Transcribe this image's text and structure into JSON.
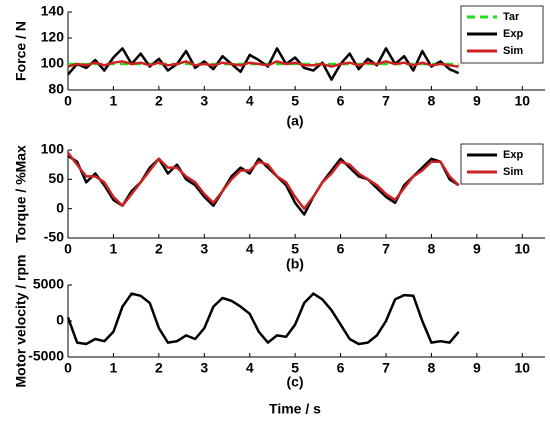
{
  "chart_data": [
    {
      "type": "line",
      "ylabel": "Force / N",
      "caption": "(a)",
      "x": [
        0,
        0.2,
        0.4,
        0.6,
        0.8,
        1,
        1.2,
        1.4,
        1.6,
        1.8,
        2,
        2.2,
        2.4,
        2.6,
        2.8,
        3,
        3.2,
        3.4,
        3.6,
        3.8,
        4,
        4.2,
        4.4,
        4.6,
        4.8,
        5,
        5.2,
        5.4,
        5.6,
        5.8,
        6,
        6.2,
        6.4,
        6.6,
        6.8,
        7,
        7.2,
        7.4,
        7.6,
        7.8,
        8,
        8.2,
        8.4,
        8.6
      ],
      "series": [
        {
          "name": "Tar",
          "color": "#22dd22",
          "linestyle": "dashed",
          "values": [
            100,
            100,
            100,
            100,
            100,
            100,
            100,
            100,
            100,
            100,
            100,
            100,
            100,
            100,
            100,
            100,
            100,
            100,
            100,
            100,
            100,
            100,
            100,
            100,
            100,
            100,
            100,
            100,
            100,
            100,
            100,
            100,
            100,
            100,
            100,
            100,
            100,
            100,
            100,
            100,
            100,
            100,
            100,
            100
          ]
        },
        {
          "name": "Exp",
          "color": "#000000",
          "linestyle": "solid",
          "values": [
            92,
            100,
            97,
            103,
            95,
            105,
            112,
            100,
            108,
            98,
            104,
            95,
            100,
            110,
            97,
            102,
            96,
            106,
            100,
            94,
            107,
            103,
            98,
            112,
            100,
            105,
            97,
            95,
            101,
            88,
            100,
            108,
            96,
            104,
            99,
            112,
            100,
            106,
            95,
            110,
            98,
            102,
            96,
            93
          ]
        },
        {
          "name": "Sim",
          "color": "#cc2222",
          "linestyle": "solid",
          "values": [
            98,
            100,
            99,
            101,
            99,
            101,
            102,
            100,
            101,
            99,
            101,
            99,
            100,
            102,
            99,
            100,
            99,
            101,
            100,
            99,
            101,
            100,
            99,
            102,
            100,
            101,
            99,
            99,
            100,
            98,
            100,
            101,
            99,
            101,
            100,
            102,
            100,
            101,
            99,
            101,
            99,
            100,
            99,
            98
          ]
        }
      ],
      "xlim": [
        0,
        10.5
      ],
      "xticks": [
        0,
        1,
        2,
        3,
        4,
        5,
        6,
        7,
        8,
        9,
        10
      ],
      "ylim": [
        80,
        140
      ],
      "yticks": [
        80,
        100,
        120,
        140
      ],
      "legend": "upper right"
    },
    {
      "type": "line",
      "ylabel": "Torque / %Max",
      "caption": "(b)",
      "x": [
        0,
        0.2,
        0.4,
        0.6,
        0.8,
        1,
        1.2,
        1.4,
        1.6,
        1.8,
        2,
        2.2,
        2.4,
        2.6,
        2.8,
        3,
        3.2,
        3.4,
        3.6,
        3.8,
        4,
        4.2,
        4.4,
        4.6,
        4.8,
        5,
        5.2,
        5.4,
        5.6,
        5.8,
        6,
        6.2,
        6.4,
        6.6,
        6.8,
        7,
        7.2,
        7.4,
        7.6,
        7.8,
        8,
        8.2,
        8.4,
        8.6
      ],
      "series": [
        {
          "name": "Exp",
          "color": "#000000",
          "linestyle": "solid",
          "values": [
            90,
            80,
            45,
            60,
            40,
            15,
            5,
            30,
            45,
            70,
            85,
            60,
            75,
            50,
            40,
            20,
            5,
            30,
            55,
            70,
            60,
            85,
            70,
            55,
            40,
            10,
            -10,
            20,
            45,
            65,
            85,
            70,
            55,
            50,
            35,
            20,
            10,
            40,
            55,
            70,
            85,
            80,
            50,
            40
          ]
        },
        {
          "name": "Sim",
          "color": "#cc2222",
          "linestyle": "solid",
          "values": [
            95,
            75,
            55,
            55,
            45,
            20,
            5,
            25,
            45,
            65,
            85,
            70,
            70,
            55,
            45,
            25,
            10,
            30,
            50,
            65,
            65,
            80,
            75,
            55,
            45,
            20,
            0,
            20,
            45,
            60,
            80,
            75,
            60,
            50,
            40,
            25,
            15,
            35,
            55,
            65,
            80,
            80,
            55,
            40
          ]
        }
      ],
      "xlim": [
        0,
        10.5
      ],
      "xticks": [
        0,
        1,
        2,
        3,
        4,
        5,
        6,
        7,
        8,
        9,
        10
      ],
      "ylim": [
        -50,
        100
      ],
      "yticks": [
        -50,
        0,
        50,
        100
      ],
      "legend": "upper right"
    },
    {
      "type": "line",
      "ylabel": "Motor velocity / rpm",
      "caption": "(c)",
      "xlabel": "Time / s",
      "x": [
        0,
        0.2,
        0.4,
        0.6,
        0.8,
        1,
        1.2,
        1.4,
        1.6,
        1.8,
        2,
        2.2,
        2.4,
        2.6,
        2.8,
        3,
        3.2,
        3.4,
        3.6,
        3.8,
        4,
        4.2,
        4.4,
        4.6,
        4.8,
        5,
        5.2,
        5.4,
        5.6,
        5.8,
        6,
        6.2,
        6.4,
        6.6,
        6.8,
        7,
        7.2,
        7.4,
        7.6,
        7.8,
        8,
        8.2,
        8.4,
        8.6
      ],
      "series": [
        {
          "color": "#000000",
          "linestyle": "solid",
          "values": [
            500,
            -3000,
            -3200,
            -2500,
            -2800,
            -1500,
            2000,
            3800,
            3500,
            2500,
            -1000,
            -3000,
            -2800,
            -2000,
            -2500,
            -1000,
            2000,
            3200,
            2800,
            2000,
            1000,
            -1500,
            -3000,
            -2000,
            -2200,
            -500,
            2500,
            3800,
            3000,
            1500,
            -500,
            -2500,
            -3200,
            -3000,
            -2000,
            0,
            3000,
            3600,
            3500,
            0,
            -3000,
            -2800,
            -3000,
            -1500
          ]
        }
      ],
      "xlim": [
        0,
        10.5
      ],
      "xticks": [
        0,
        1,
        2,
        3,
        4,
        5,
        6,
        7,
        8,
        9,
        10
      ],
      "ylim": [
        -5000,
        5000
      ],
      "yticks": [
        -5000,
        0,
        5000
      ]
    }
  ]
}
